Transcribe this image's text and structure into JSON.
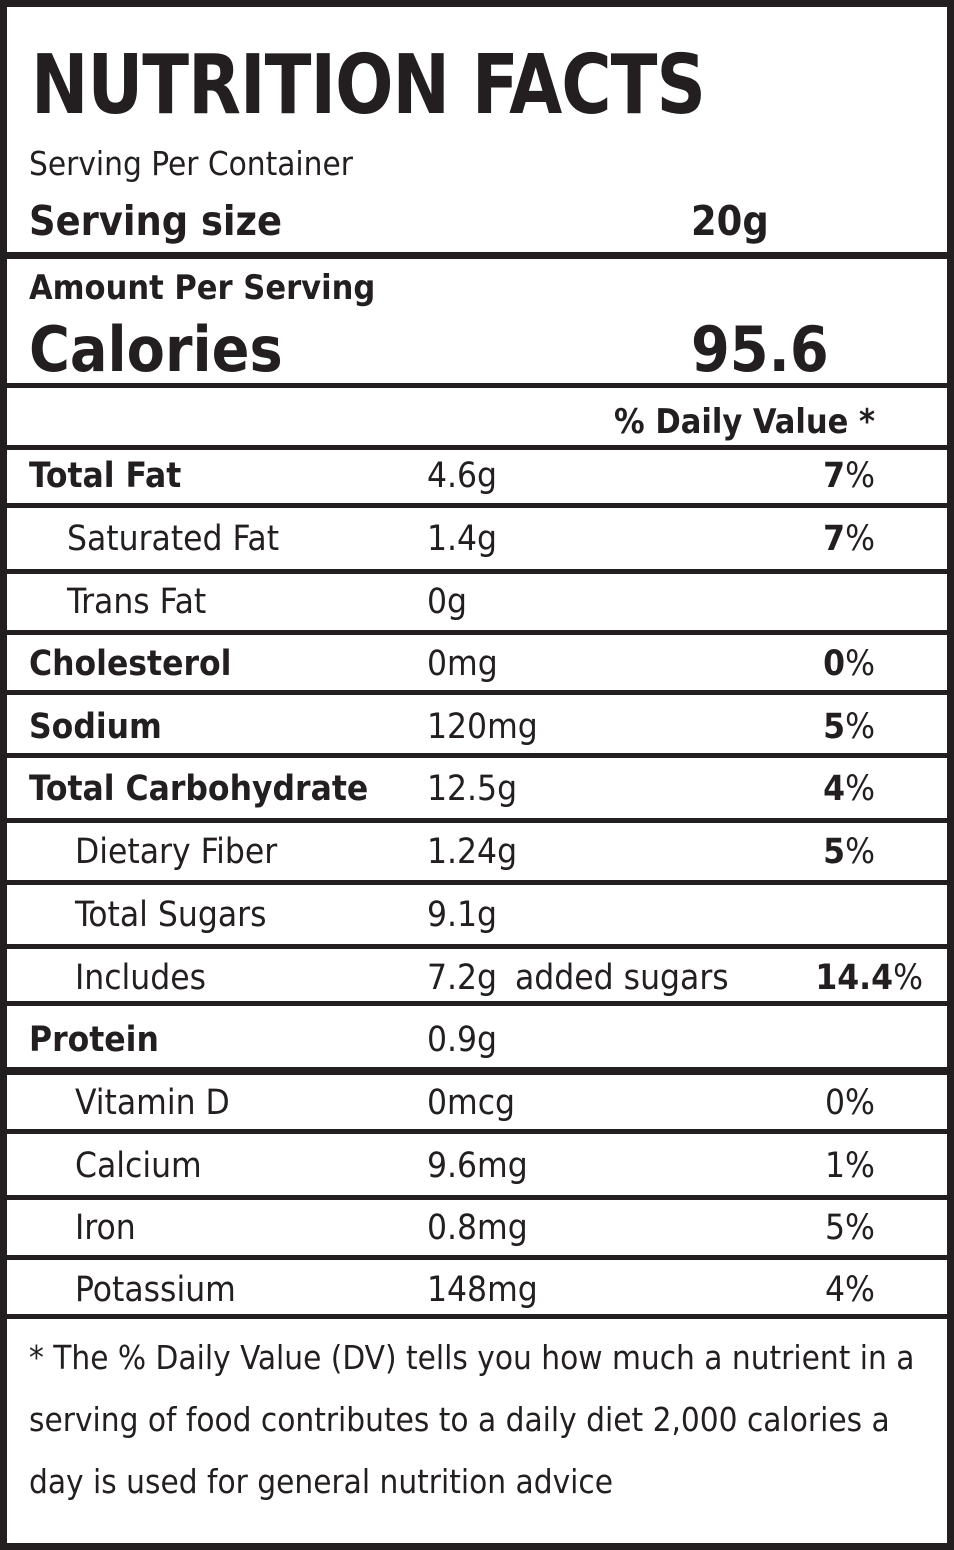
{
  "header": {
    "title": "NUTRITION FACTS",
    "serving_per_container": "Serving Per Container",
    "serving_size_label": "Serving size",
    "serving_size_value": "20g"
  },
  "calories": {
    "amount_per_serving": "Amount Per Serving",
    "label": "Calories",
    "value": "95.6"
  },
  "daily_value_header": "% Daily Value *",
  "nutrients": [
    {
      "name": "Total Fat",
      "amount": "4.6g",
      "pct_num": "7",
      "pct_sign": "%"
    },
    {
      "name": "Saturated Fat",
      "amount": "1.4g",
      "pct_num": "7",
      "pct_sign": "%"
    },
    {
      "name": "Trans Fat",
      "amount": "0g"
    },
    {
      "name": "Cholesterol",
      "amount": "0mg",
      "pct_num": "0",
      "pct_sign": "%"
    },
    {
      "name": "Sodium",
      "amount": "120mg",
      "pct_num": "5",
      "pct_sign": "%"
    },
    {
      "name": "Total Carbohydrate",
      "amount": "12.5g",
      "pct_num": "4",
      "pct_sign": "%"
    },
    {
      "name": "Dietary Fiber",
      "amount": "1.24g",
      "pct_num": "5",
      "pct_sign": "%"
    },
    {
      "name": "Total Sugars",
      "amount": "9.1g"
    },
    {
      "name": "Includes",
      "amount": "7.2g",
      "extra": "added sugars",
      "pct_num": "14.4",
      "pct_sign": "%"
    },
    {
      "name": "Protein",
      "amount": "0.9g"
    },
    {
      "name": "Vitamin D",
      "amount": "0mcg",
      "pct": "0%"
    },
    {
      "name": "Calcium",
      "amount": "9.6mg",
      "pct": "1%"
    },
    {
      "name": "Iron",
      "amount": "0.8mg",
      "pct": "5%"
    },
    {
      "name": "Potassium",
      "amount": "148mg",
      "pct": "4%"
    }
  ],
  "footnote": "* The % Daily Value (DV) tells you how much a nutrient in a serving of food contributes to a daily diet 2,000 calories a day is used for general nutrition advice"
}
